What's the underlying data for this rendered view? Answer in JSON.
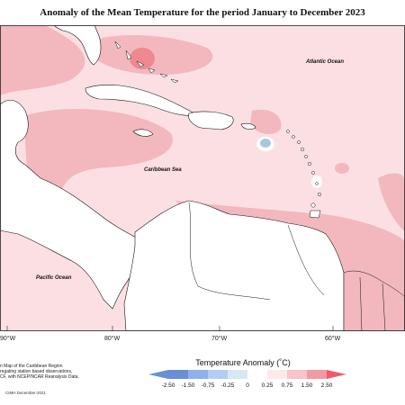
{
  "title": "Anomaly of the Mean Temperature for the period January to December 2023",
  "labels": {
    "atlantic": "Atlantic Ocean",
    "caribbean": "Caribbean Sea",
    "pacific": "Pacific Ocean"
  },
  "longitudes": [
    "90°W",
    "80°W",
    "70°W",
    "60°W"
  ],
  "footnote": "n Map of the Caribbean Region\nregating station based observations,\nCF, with NCEP/NCAR Reanalysis Data.",
  "credit": "CIMH December-2021",
  "legend": {
    "title": "Temperature Anomaly (˚C)",
    "ticks": [
      "-2.50",
      "-1.50",
      "-0.75",
      "-0.25",
      "0",
      "0.25",
      "0.75",
      "1.50",
      "2.50"
    ],
    "colors": [
      "#6a8fd6",
      "#8fb0ea",
      "#b3cdf2",
      "#d6e8f4",
      "#ffffff",
      "#fde8ea",
      "#f8c4c9",
      "#f19aa2",
      "#f25a6a"
    ]
  },
  "colors": {
    "light_anomaly": "#fcdfe2",
    "mid_anomaly": "#f2b8bd",
    "strong_anomaly": "#ef8890",
    "cool_anomaly": "#a9c6dd",
    "land": "#ffffff"
  }
}
